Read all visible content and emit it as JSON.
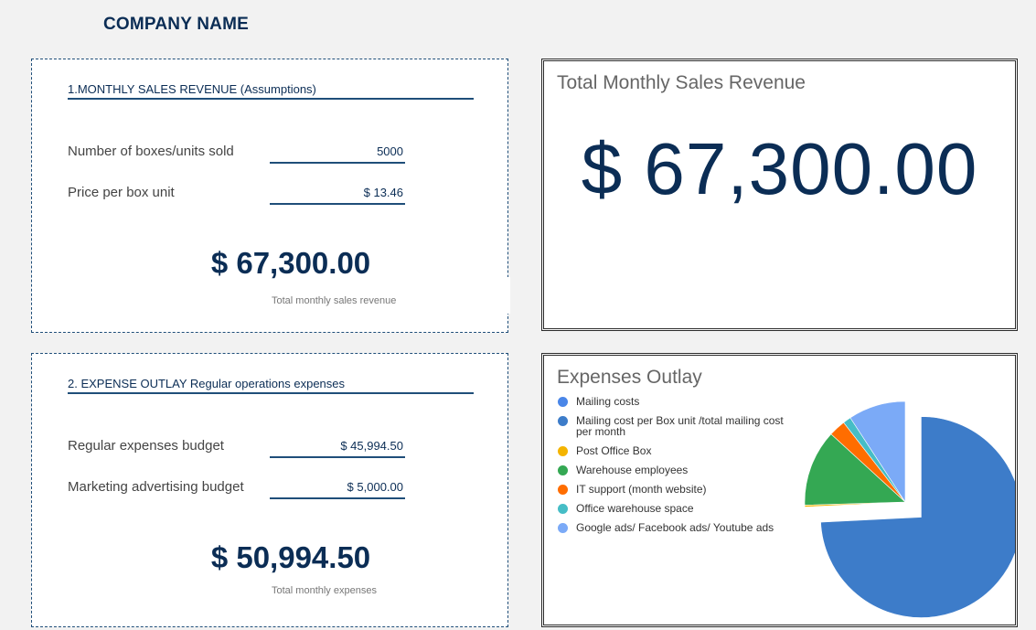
{
  "header": {
    "company_name": "COMPANY NAME"
  },
  "revenue_card": {
    "title": "1.MONTHLY SALES REVENUE (Assumptions)",
    "rows": [
      {
        "label": "Number of boxes/units sold",
        "value": "5000"
      },
      {
        "label": "Price per box unit",
        "value": "$ 13.46"
      }
    ],
    "total": "$ 67,300.00",
    "caption": "Total monthly sales revenue"
  },
  "expense_card": {
    "title": "2. EXPENSE OUTLAY Regular operations expenses",
    "rows": [
      {
        "label": "Regular expenses budget",
        "value": "$ 45,994.50"
      },
      {
        "label": "Marketing advertising budget",
        "value": "$ 5,000.00"
      }
    ],
    "total": "$ 50,994.50",
    "caption": "Total monthly expenses"
  },
  "revenue_panel": {
    "title": "Total Monthly Sales Revenue",
    "value": "$ 67,300.00"
  },
  "chart_data": {
    "type": "pie",
    "title": "Expenses Outlay",
    "legend_position": "left",
    "categories": [
      "Mailing costs",
      "Mailing cost per Box unit /total mailing cost per month",
      "Post Office Box",
      "Warehouse employees",
      "IT support (month website)",
      "Office warehouse space",
      "Google ads/ Facebook ads/ Youtube ads"
    ],
    "colors": [
      "#4a86e8",
      "#3d7cc9",
      "#f4b400",
      "#34a853",
      "#ff6d00",
      "#46bdc6",
      "#7baaf7"
    ],
    "values_percent": [
      0,
      74.2,
      0.3,
      12.3,
      2.7,
      1.3,
      9.2
    ],
    "exploded_slice": 1
  }
}
